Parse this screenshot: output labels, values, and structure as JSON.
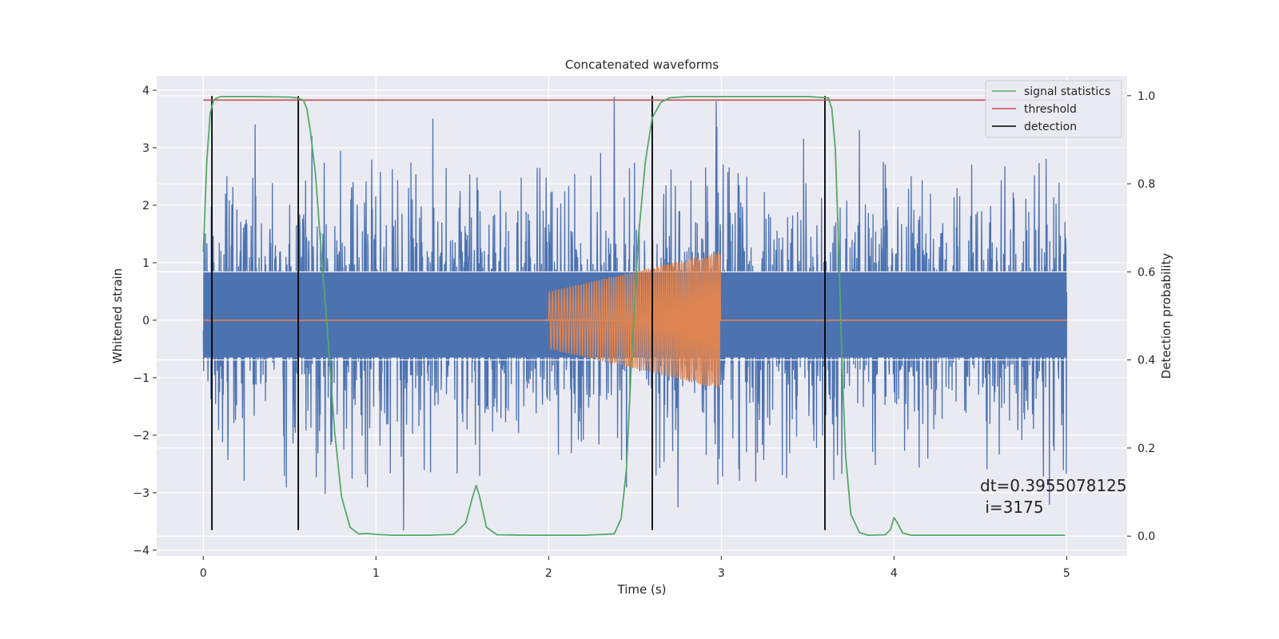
{
  "chart_data": {
    "type": "line",
    "title": "Concatenated waveforms",
    "xlabel": "Time (s)",
    "ylabel": "Whitened strain",
    "ylabel_right": "Detection probability",
    "xlim": [
      -0.27,
      5.35
    ],
    "ylim": [
      -4.1,
      4.25
    ],
    "ylim_right": [
      -0.045,
      1.045
    ],
    "x_ticks": [
      0,
      1,
      2,
      3,
      4,
      5
    ],
    "y_ticks": [
      -4,
      -3,
      -2,
      -1,
      0,
      1,
      2,
      3,
      4
    ],
    "y_ticks_right": [
      0.0,
      0.2,
      0.4,
      0.6,
      0.8,
      1.0
    ],
    "x_tick_labels": [
      "0",
      "1",
      "2",
      "3",
      "4",
      "5"
    ],
    "y_tick_labels": [
      "−4",
      "−3",
      "−2",
      "−1",
      "0",
      "1",
      "2",
      "3",
      "4"
    ],
    "y_tick_labels_right": [
      "0.0",
      "0.2",
      "0.4",
      "0.6",
      "0.8",
      "1.0"
    ],
    "grid": true,
    "legend_position": "top-right",
    "colors": {
      "strain": "#4c72b0",
      "injection": "#dd8452",
      "signal_statistics": "#55a868",
      "threshold": "#c44e52",
      "detection": "#000000",
      "background": "#eaeaf2",
      "grid": "#ffffff"
    },
    "series": [
      {
        "name": "signal statistics",
        "axis": "right",
        "x": [
          0.0,
          0.02,
          0.04,
          0.06,
          0.08,
          0.1,
          0.15,
          0.3,
          0.5,
          0.54,
          0.58,
          0.6,
          0.62,
          0.65,
          0.68,
          0.72,
          0.76,
          0.8,
          0.85,
          0.9,
          0.95,
          1.0,
          1.1,
          1.3,
          1.45,
          1.52,
          1.56,
          1.58,
          1.6,
          1.64,
          1.7,
          1.9,
          2.2,
          2.38,
          2.42,
          2.45,
          2.48,
          2.52,
          2.56,
          2.6,
          2.65,
          2.7,
          2.8,
          3.0,
          3.5,
          3.62,
          3.64,
          3.66,
          3.68,
          3.7,
          3.72,
          3.75,
          3.8,
          3.85,
          3.95,
          3.98,
          4.0,
          4.02,
          4.05,
          4.1,
          4.5,
          4.95,
          4.99
        ],
        "y": [
          0.645,
          0.85,
          0.96,
          0.99,
          0.995,
          0.998,
          0.998,
          0.998,
          0.997,
          0.995,
          0.99,
          0.97,
          0.92,
          0.82,
          0.66,
          0.46,
          0.24,
          0.09,
          0.02,
          0.005,
          0.006,
          0.004,
          0.002,
          0.002,
          0.004,
          0.03,
          0.09,
          0.115,
          0.09,
          0.02,
          0.003,
          0.002,
          0.002,
          0.005,
          0.04,
          0.15,
          0.4,
          0.68,
          0.85,
          0.95,
          0.985,
          0.995,
          0.998,
          0.998,
          0.998,
          0.995,
          0.97,
          0.88,
          0.65,
          0.38,
          0.18,
          0.05,
          0.008,
          0.002,
          0.003,
          0.015,
          0.042,
          0.03,
          0.007,
          0.002,
          0.002,
          0.002,
          0.002
        ]
      },
      {
        "name": "threshold",
        "axis": "right",
        "x": [
          0.0,
          4.99
        ],
        "y": [
          0.99,
          0.99
        ]
      },
      {
        "name": "detection",
        "axis": "left",
        "type": "vlines",
        "x": [
          0.05,
          0.55,
          2.6,
          3.6
        ],
        "y_range": [
          -3.65,
          3.9
        ]
      },
      {
        "name": "",
        "role": "whitened-strain",
        "axis": "left",
        "type": "noise",
        "x_range": [
          0.0,
          5.0
        ],
        "core_range": [
          -0.65,
          0.85
        ],
        "min": -3.65,
        "max": 3.9,
        "spike_up": [
          [
            0.3,
            3.4
          ],
          [
            0.63,
            3.2
          ],
          [
            1.33,
            3.5
          ],
          [
            1.6,
            2.65
          ],
          [
            2.3,
            2.9
          ],
          [
            2.38,
            3.88
          ],
          [
            2.45,
            3.3
          ],
          [
            2.6,
            3.9
          ],
          [
            2.75,
            2.85
          ],
          [
            2.97,
            3.8
          ],
          [
            3.2,
            2.8
          ],
          [
            3.6,
            3.8
          ],
          [
            3.8,
            3.3
          ],
          [
            3.95,
            2.7
          ],
          [
            4.1,
            2.5
          ],
          [
            4.45,
            2.7
          ],
          [
            4.88,
            2.8
          ]
        ],
        "spike_down": [
          [
            0.48,
            -2.9
          ],
          [
            0.47,
            -2.7
          ],
          [
            0.95,
            -2.9
          ],
          [
            1.16,
            -3.65
          ],
          [
            1.28,
            -2.6
          ],
          [
            1.6,
            -2.7
          ],
          [
            2.45,
            -2.9
          ],
          [
            2.75,
            -3.25
          ],
          [
            2.98,
            -2.85
          ],
          [
            3.2,
            -2.8
          ],
          [
            4.9,
            -3.2
          ],
          [
            4.98,
            -2.6
          ]
        ]
      },
      {
        "name": "",
        "role": "injected-waveform",
        "axis": "left",
        "type": "chirp",
        "x_range": [
          2.0,
          3.0
        ],
        "amplitude_start": 0.5,
        "amplitude_end": 1.2,
        "baseline_x_range": [
          0.0,
          5.0
        ],
        "baseline_y": 0.0
      }
    ],
    "annotation": {
      "line1": "dt=0.3955078125",
      "line2": " i=3175"
    },
    "legend": {
      "items": [
        "signal statistics",
        "threshold",
        "detection"
      ]
    }
  }
}
